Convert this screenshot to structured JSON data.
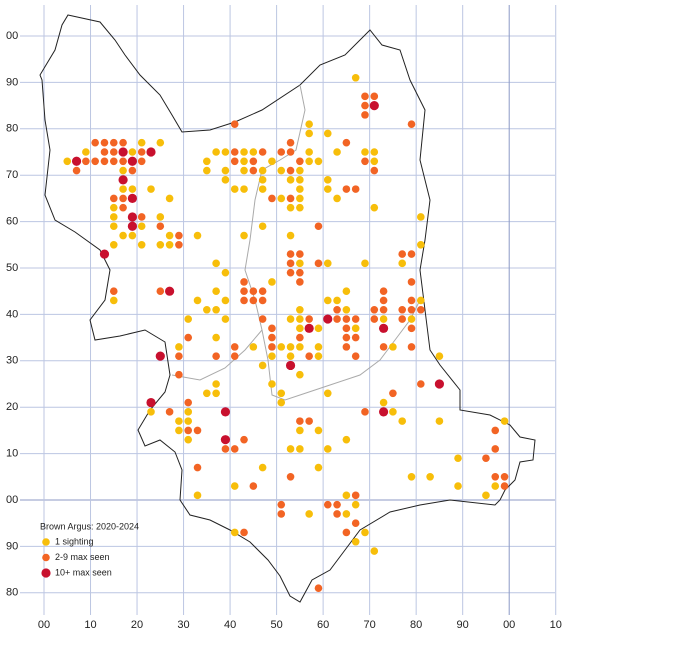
{
  "map": {
    "legend_title": "Brown Argus:  2020-2024",
    "legend": [
      {
        "label": "1 sighting",
        "color": "#f7be0a"
      },
      {
        "label": "2-9 max seen",
        "color": "#f26424"
      },
      {
        "label": "10+ max seen",
        "color": "#c8102e"
      }
    ],
    "y_labels": [
      "00",
      "90",
      "80",
      "70",
      "60",
      "50",
      "40",
      "30",
      "20",
      "10",
      "00",
      "90",
      "80"
    ],
    "x_labels": [
      "00",
      "10",
      "20",
      "30",
      "40",
      "50",
      "60",
      "70",
      "80",
      "90",
      "00",
      "10"
    ],
    "records": [
      [
        67,
        91,
        0
      ],
      [
        69,
        87,
        1
      ],
      [
        71,
        87,
        1
      ],
      [
        71,
        85,
        2
      ],
      [
        69,
        85,
        1
      ],
      [
        69,
        83,
        1
      ],
      [
        41,
        81,
        1
      ],
      [
        79,
        81,
        1
      ],
      [
        57,
        81,
        0
      ],
      [
        57,
        79,
        0
      ],
      [
        61,
        79,
        0
      ],
      [
        11,
        77,
        1
      ],
      [
        13,
        77,
        1
      ],
      [
        15,
        77,
        1
      ],
      [
        17,
        77,
        1
      ],
      [
        21,
        77,
        0
      ],
      [
        25,
        77,
        0
      ],
      [
        53,
        77,
        1
      ],
      [
        65,
        77,
        1
      ],
      [
        9,
        75,
        0
      ],
      [
        13,
        75,
        1
      ],
      [
        15,
        75,
        1
      ],
      [
        17,
        75,
        2
      ],
      [
        19,
        75,
        0
      ],
      [
        21,
        75,
        1
      ],
      [
        23,
        75,
        2
      ],
      [
        37,
        75,
        0
      ],
      [
        39,
        75,
        0
      ],
      [
        41,
        75,
        1
      ],
      [
        43,
        75,
        0
      ],
      [
        45,
        75,
        0
      ],
      [
        47,
        75,
        1
      ],
      [
        51,
        75,
        1
      ],
      [
        53,
        75,
        1
      ],
      [
        57,
        75,
        0
      ],
      [
        63,
        75,
        0
      ],
      [
        69,
        75,
        0
      ],
      [
        71,
        75,
        0
      ],
      [
        5,
        73,
        0
      ],
      [
        7,
        73,
        2
      ],
      [
        9,
        73,
        1
      ],
      [
        11,
        73,
        1
      ],
      [
        13,
        73,
        1
      ],
      [
        15,
        73,
        1
      ],
      [
        17,
        73,
        1
      ],
      [
        19,
        73,
        2
      ],
      [
        21,
        73,
        1
      ],
      [
        35,
        73,
        0
      ],
      [
        41,
        73,
        1
      ],
      [
        43,
        73,
        0
      ],
      [
        45,
        73,
        1
      ],
      [
        49,
        73,
        0
      ],
      [
        55,
        73,
        1
      ],
      [
        57,
        73,
        0
      ],
      [
        59,
        73,
        0
      ],
      [
        69,
        73,
        1
      ],
      [
        71,
        73,
        0
      ],
      [
        7,
        71,
        1
      ],
      [
        17,
        71,
        0
      ],
      [
        19,
        71,
        1
      ],
      [
        35,
        71,
        0
      ],
      [
        39,
        71,
        0
      ],
      [
        43,
        71,
        0
      ],
      [
        45,
        71,
        1
      ],
      [
        47,
        71,
        0
      ],
      [
        51,
        71,
        0
      ],
      [
        53,
        71,
        1
      ],
      [
        55,
        71,
        0
      ],
      [
        71,
        71,
        1
      ],
      [
        17,
        69,
        2
      ],
      [
        39,
        69,
        0
      ],
      [
        47,
        69,
        0
      ],
      [
        53,
        69,
        0
      ],
      [
        55,
        69,
        0
      ],
      [
        61,
        69,
        0
      ],
      [
        17,
        67,
        0
      ],
      [
        19,
        67,
        0
      ],
      [
        23,
        67,
        0
      ],
      [
        41,
        67,
        0
      ],
      [
        43,
        67,
        0
      ],
      [
        47,
        67,
        0
      ],
      [
        55,
        67,
        0
      ],
      [
        61,
        67,
        0
      ],
      [
        65,
        67,
        1
      ],
      [
        67,
        67,
        1
      ],
      [
        15,
        65,
        1
      ],
      [
        17,
        65,
        1
      ],
      [
        19,
        65,
        2
      ],
      [
        27,
        65,
        0
      ],
      [
        49,
        65,
        1
      ],
      [
        51,
        65,
        0
      ],
      [
        53,
        65,
        1
      ],
      [
        55,
        65,
        0
      ],
      [
        63,
        65,
        0
      ],
      [
        15,
        63,
        0
      ],
      [
        17,
        63,
        1
      ],
      [
        53,
        63,
        0
      ],
      [
        55,
        63,
        0
      ],
      [
        71,
        63,
        0
      ],
      [
        15,
        61,
        0
      ],
      [
        19,
        61,
        2
      ],
      [
        21,
        61,
        1
      ],
      [
        25,
        61,
        0
      ],
      [
        81,
        61,
        0
      ],
      [
        15,
        59,
        0
      ],
      [
        19,
        59,
        2
      ],
      [
        21,
        59,
        0
      ],
      [
        25,
        59,
        1
      ],
      [
        47,
        59,
        0
      ],
      [
        59,
        59,
        1
      ],
      [
        17,
        57,
        0
      ],
      [
        19,
        57,
        0
      ],
      [
        27,
        57,
        0
      ],
      [
        29,
        57,
        1
      ],
      [
        33,
        57,
        0
      ],
      [
        43,
        57,
        0
      ],
      [
        53,
        57,
        0
      ],
      [
        15,
        55,
        0
      ],
      [
        21,
        55,
        0
      ],
      [
        25,
        55,
        0
      ],
      [
        27,
        55,
        0
      ],
      [
        29,
        55,
        1
      ],
      [
        81,
        55,
        0
      ],
      [
        13,
        53,
        2
      ],
      [
        53,
        53,
        1
      ],
      [
        55,
        53,
        1
      ],
      [
        77,
        53,
        1
      ],
      [
        79,
        53,
        1
      ],
      [
        37,
        51,
        0
      ],
      [
        53,
        51,
        1
      ],
      [
        55,
        51,
        0
      ],
      [
        59,
        51,
        1
      ],
      [
        61,
        51,
        0
      ],
      [
        69,
        51,
        0
      ],
      [
        77,
        51,
        0
      ],
      [
        39,
        49,
        0
      ],
      [
        53,
        49,
        1
      ],
      [
        55,
        49,
        1
      ],
      [
        43,
        47,
        1
      ],
      [
        49,
        47,
        0
      ],
      [
        55,
        47,
        1
      ],
      [
        79,
        47,
        1
      ],
      [
        15,
        45,
        1
      ],
      [
        25,
        45,
        1
      ],
      [
        27,
        45,
        2
      ],
      [
        37,
        45,
        0
      ],
      [
        43,
        45,
        1
      ],
      [
        45,
        45,
        1
      ],
      [
        47,
        45,
        1
      ],
      [
        65,
        45,
        0
      ],
      [
        73,
        45,
        1
      ],
      [
        15,
        43,
        0
      ],
      [
        33,
        43,
        0
      ],
      [
        39,
        43,
        0
      ],
      [
        43,
        43,
        1
      ],
      [
        45,
        43,
        1
      ],
      [
        47,
        43,
        1
      ],
      [
        61,
        43,
        0
      ],
      [
        63,
        43,
        0
      ],
      [
        73,
        43,
        1
      ],
      [
        79,
        43,
        1
      ],
      [
        81,
        43,
        0
      ],
      [
        35,
        41,
        0
      ],
      [
        37,
        41,
        0
      ],
      [
        55,
        41,
        0
      ],
      [
        63,
        41,
        1
      ],
      [
        65,
        41,
        0
      ],
      [
        71,
        41,
        1
      ],
      [
        73,
        41,
        1
      ],
      [
        77,
        41,
        1
      ],
      [
        79,
        41,
        1
      ],
      [
        81,
        41,
        1
      ],
      [
        31,
        39,
        0
      ],
      [
        39,
        39,
        0
      ],
      [
        47,
        39,
        1
      ],
      [
        53,
        39,
        0
      ],
      [
        55,
        39,
        0
      ],
      [
        57,
        39,
        1
      ],
      [
        61,
        39,
        2
      ],
      [
        63,
        39,
        1
      ],
      [
        65,
        39,
        1
      ],
      [
        67,
        39,
        1
      ],
      [
        71,
        39,
        1
      ],
      [
        73,
        39,
        0
      ],
      [
        77,
        39,
        1
      ],
      [
        79,
        39,
        0
      ],
      [
        49,
        37,
        1
      ],
      [
        55,
        37,
        0
      ],
      [
        57,
        37,
        2
      ],
      [
        59,
        37,
        0
      ],
      [
        65,
        37,
        1
      ],
      [
        67,
        37,
        0
      ],
      [
        73,
        37,
        2
      ],
      [
        79,
        37,
        1
      ],
      [
        31,
        35,
        1
      ],
      [
        37,
        35,
        0
      ],
      [
        49,
        35,
        1
      ],
      [
        55,
        35,
        1
      ],
      [
        65,
        35,
        1
      ],
      [
        67,
        35,
        1
      ],
      [
        29,
        33,
        0
      ],
      [
        41,
        33,
        1
      ],
      [
        45,
        33,
        0
      ],
      [
        49,
        33,
        1
      ],
      [
        51,
        33,
        0
      ],
      [
        53,
        33,
        0
      ],
      [
        55,
        33,
        0
      ],
      [
        59,
        33,
        0
      ],
      [
        65,
        33,
        1
      ],
      [
        73,
        33,
        1
      ],
      [
        75,
        33,
        0
      ],
      [
        79,
        33,
        1
      ],
      [
        25,
        31,
        2
      ],
      [
        29,
        31,
        1
      ],
      [
        37,
        31,
        1
      ],
      [
        41,
        31,
        1
      ],
      [
        49,
        31,
        0
      ],
      [
        53,
        31,
        0
      ],
      [
        57,
        31,
        1
      ],
      [
        59,
        31,
        0
      ],
      [
        67,
        31,
        1
      ],
      [
        85,
        31,
        0
      ],
      [
        53,
        29,
        2
      ],
      [
        47,
        29,
        0
      ],
      [
        29,
        27,
        1
      ],
      [
        55,
        27,
        0
      ],
      [
        37,
        25,
        0
      ],
      [
        49,
        25,
        0
      ],
      [
        81,
        25,
        1
      ],
      [
        85,
        25,
        2
      ],
      [
        35,
        23,
        0
      ],
      [
        37,
        23,
        0
      ],
      [
        51,
        23,
        0
      ],
      [
        61,
        23,
        0
      ],
      [
        75,
        23,
        1
      ],
      [
        23,
        21,
        2
      ],
      [
        51,
        21,
        0
      ],
      [
        31,
        21,
        1
      ],
      [
        73,
        21,
        0
      ],
      [
        23,
        19,
        0
      ],
      [
        27,
        19,
        1
      ],
      [
        31,
        19,
        0
      ],
      [
        39,
        19,
        2
      ],
      [
        69,
        19,
        1
      ],
      [
        73,
        19,
        2
      ],
      [
        75,
        19,
        0
      ],
      [
        29,
        17,
        0
      ],
      [
        31,
        17,
        0
      ],
      [
        55,
        17,
        1
      ],
      [
        57,
        17,
        1
      ],
      [
        77,
        17,
        0
      ],
      [
        85,
        17,
        0
      ],
      [
        99,
        17,
        0
      ],
      [
        29,
        15,
        0
      ],
      [
        31,
        15,
        1
      ],
      [
        33,
        15,
        1
      ],
      [
        55,
        15,
        0
      ],
      [
        59,
        15,
        0
      ],
      [
        97,
        15,
        1
      ],
      [
        31,
        13,
        0
      ],
      [
        39,
        13,
        2
      ],
      [
        43,
        13,
        1
      ],
      [
        65,
        13,
        0
      ],
      [
        39,
        11,
        1
      ],
      [
        41,
        11,
        1
      ],
      [
        53,
        11,
        0
      ],
      [
        55,
        11,
        0
      ],
      [
        61,
        11,
        0
      ],
      [
        97,
        11,
        1
      ],
      [
        89,
        9,
        0
      ],
      [
        95,
        9,
        1
      ],
      [
        33,
        7,
        1
      ],
      [
        47,
        7,
        0
      ],
      [
        59,
        7,
        0
      ],
      [
        53,
        5,
        1
      ],
      [
        79,
        5,
        0
      ],
      [
        83,
        5,
        0
      ],
      [
        97,
        5,
        1
      ],
      [
        99,
        5,
        1
      ],
      [
        41,
        3,
        0
      ],
      [
        45,
        3,
        1
      ],
      [
        89,
        3,
        0
      ],
      [
        97,
        3,
        0
      ],
      [
        99,
        3,
        1
      ],
      [
        33,
        1,
        0
      ],
      [
        65,
        1,
        0
      ],
      [
        67,
        1,
        1
      ],
      [
        95,
        1,
        0
      ],
      [
        51,
        -1,
        1
      ],
      [
        61,
        -1,
        1
      ],
      [
        63,
        -1,
        1
      ],
      [
        67,
        -1,
        0
      ],
      [
        51,
        -3,
        1
      ],
      [
        57,
        -3,
        0
      ],
      [
        63,
        -3,
        1
      ],
      [
        65,
        -3,
        0
      ],
      [
        67,
        -5,
        1
      ],
      [
        41,
        -7,
        0
      ],
      [
        43,
        -7,
        1
      ],
      [
        65,
        -7,
        1
      ],
      [
        69,
        -7,
        0
      ],
      [
        67,
        -9,
        0
      ],
      [
        71,
        -11,
        0
      ],
      [
        59,
        -19,
        1
      ]
    ]
  }
}
